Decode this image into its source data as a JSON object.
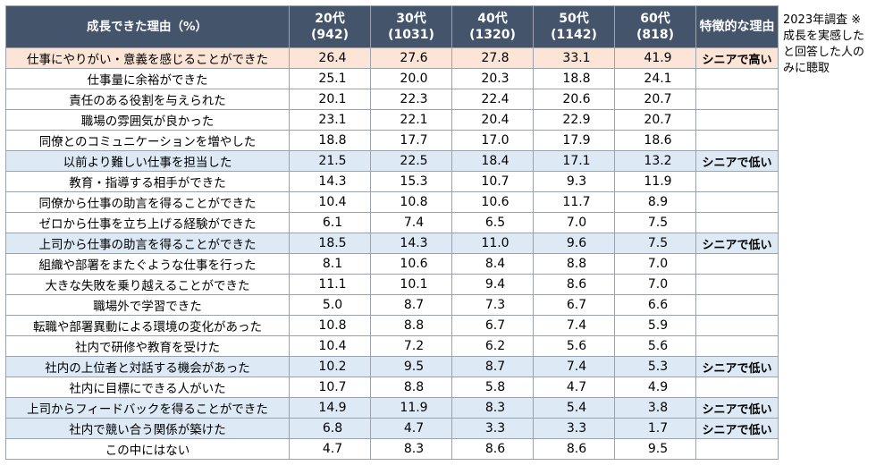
{
  "header": {
    "reason_label": "成長できた理由（%）",
    "cols": [
      {
        "age": "20代",
        "n": "(942)"
      },
      {
        "age": "30代",
        "n": "(1031)"
      },
      {
        "age": "40代",
        "n": "(1320)"
      },
      {
        "age": "50代",
        "n": "(1142)"
      },
      {
        "age": "60代",
        "n": "(818)"
      }
    ],
    "feature_label": "特徴的な理由"
  },
  "rows": [
    {
      "reason": "仕事にやりがい・意義を感じることができた",
      "values": [
        "26.4",
        "27.6",
        "27.8",
        "33.1",
        "41.9"
      ],
      "feature": "シニアで高い",
      "highlight": "orange"
    },
    {
      "reason": "仕事量に余裕ができた",
      "values": [
        "25.1",
        "20.0",
        "20.3",
        "18.8",
        "24.1"
      ],
      "feature": "",
      "highlight": ""
    },
    {
      "reason": "責任のある役割を与えられた",
      "values": [
        "20.1",
        "22.3",
        "22.4",
        "20.6",
        "20.7"
      ],
      "feature": "",
      "highlight": ""
    },
    {
      "reason": "職場の雰囲気が良かった",
      "values": [
        "23.1",
        "22.1",
        "20.4",
        "22.9",
        "20.7"
      ],
      "feature": "",
      "highlight": ""
    },
    {
      "reason": "同僚とのコミュニケーションを増やした",
      "values": [
        "18.8",
        "17.7",
        "17.0",
        "17.9",
        "18.6"
      ],
      "feature": "",
      "highlight": ""
    },
    {
      "reason": "以前より難しい仕事を担当した",
      "values": [
        "21.5",
        "22.5",
        "18.4",
        "17.1",
        "13.2"
      ],
      "feature": "シニアで低い",
      "highlight": "blue"
    },
    {
      "reason": "教育・指導する相手ができた",
      "values": [
        "14.3",
        "15.3",
        "10.7",
        "9.3",
        "11.9"
      ],
      "feature": "",
      "highlight": ""
    },
    {
      "reason": "同僚から仕事の助言を得ることができた",
      "values": [
        "10.4",
        "10.8",
        "10.6",
        "11.7",
        "8.9"
      ],
      "feature": "",
      "highlight": ""
    },
    {
      "reason": "ゼロから仕事を立ち上げる経験ができた",
      "values": [
        "6.1",
        "7.4",
        "6.5",
        "7.0",
        "7.5"
      ],
      "feature": "",
      "highlight": ""
    },
    {
      "reason": "上司から仕事の助言を得ることができた",
      "values": [
        "18.5",
        "14.3",
        "11.0",
        "9.6",
        "7.5"
      ],
      "feature": "シニアで低い",
      "highlight": "blue"
    },
    {
      "reason": "組織や部署をまたぐような仕事を行った",
      "values": [
        "8.1",
        "10.6",
        "8.4",
        "8.8",
        "7.0"
      ],
      "feature": "",
      "highlight": ""
    },
    {
      "reason": "大きな失敗を乗り越えることができた",
      "values": [
        "11.1",
        "10.1",
        "9.4",
        "8.6",
        "7.0"
      ],
      "feature": "",
      "highlight": ""
    },
    {
      "reason": "職場外で学習できた",
      "values": [
        "5.0",
        "8.7",
        "7.3",
        "6.7",
        "6.6"
      ],
      "feature": "",
      "highlight": ""
    },
    {
      "reason": "転職や部署異動による環境の変化があった",
      "values": [
        "10.8",
        "8.8",
        "6.7",
        "7.4",
        "5.9"
      ],
      "feature": "",
      "highlight": ""
    },
    {
      "reason": "社内で研修や教育を受けた",
      "values": [
        "10.4",
        "7.2",
        "6.2",
        "5.6",
        "5.6"
      ],
      "feature": "",
      "highlight": ""
    },
    {
      "reason": "社内の上位者と対話する機会があった",
      "values": [
        "10.2",
        "9.5",
        "8.7",
        "7.4",
        "5.3"
      ],
      "feature": "シニアで低い",
      "highlight": "blue"
    },
    {
      "reason": "社内に目標にできる人がいた",
      "values": [
        "10.7",
        "8.8",
        "5.8",
        "4.7",
        "4.9"
      ],
      "feature": "",
      "highlight": ""
    },
    {
      "reason": "上司からフィードバックを得ることができた",
      "values": [
        "14.9",
        "11.9",
        "8.3",
        "5.4",
        "3.8"
      ],
      "feature": "シニアで低い",
      "highlight": "blue"
    },
    {
      "reason": "社内で競い合う関係が築けた",
      "values": [
        "6.8",
        "4.7",
        "3.3",
        "3.3",
        "1.7"
      ],
      "feature": "シニアで低い",
      "highlight": "blue"
    },
    {
      "reason": "この中にはない",
      "values": [
        "4.7",
        "8.3",
        "8.6",
        "8.6",
        "9.5"
      ],
      "feature": "",
      "highlight": ""
    }
  ],
  "note": "2023年調査 ※成長を実感したと回答した人のみに聴取",
  "colors": {
    "header_bg": "#44546a",
    "highlight_orange": "#fce4d6",
    "highlight_blue": "#dde9f5"
  }
}
